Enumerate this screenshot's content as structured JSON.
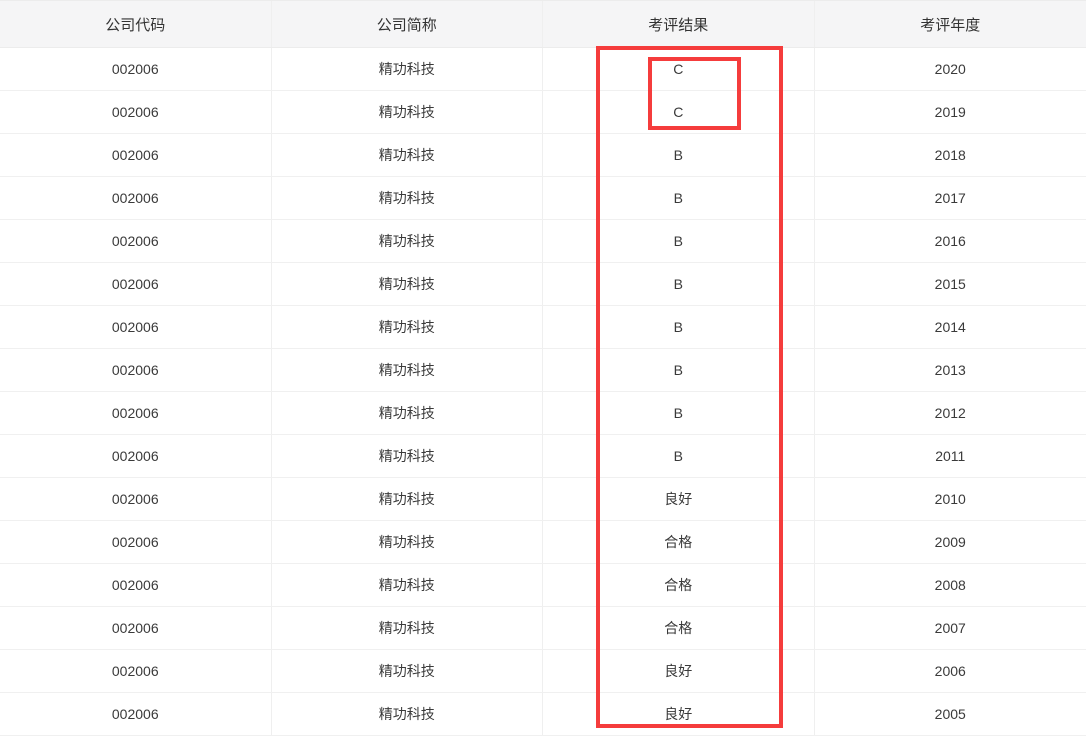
{
  "table": {
    "columns": [
      {
        "key": "code",
        "label": "公司代码"
      },
      {
        "key": "name",
        "label": "公司简称"
      },
      {
        "key": "result",
        "label": "考评结果"
      },
      {
        "key": "year",
        "label": "考评年度"
      }
    ],
    "rows": [
      [
        "002006",
        "精功科技",
        "C",
        "2020"
      ],
      [
        "002006",
        "精功科技",
        "C",
        "2019"
      ],
      [
        "002006",
        "精功科技",
        "B",
        "2018"
      ],
      [
        "002006",
        "精功科技",
        "B",
        "2017"
      ],
      [
        "002006",
        "精功科技",
        "B",
        "2016"
      ],
      [
        "002006",
        "精功科技",
        "B",
        "2015"
      ],
      [
        "002006",
        "精功科技",
        "B",
        "2014"
      ],
      [
        "002006",
        "精功科技",
        "B",
        "2013"
      ],
      [
        "002006",
        "精功科技",
        "B",
        "2012"
      ],
      [
        "002006",
        "精功科技",
        "B",
        "2011"
      ],
      [
        "002006",
        "精功科技",
        "良好",
        "2010"
      ],
      [
        "002006",
        "精功科技",
        "合格",
        "2009"
      ],
      [
        "002006",
        "精功科技",
        "合格",
        "2008"
      ],
      [
        "002006",
        "精功科技",
        "合格",
        "2007"
      ],
      [
        "002006",
        "精功科技",
        "良好",
        "2006"
      ],
      [
        "002006",
        "精功科技",
        "良好",
        "2005"
      ]
    ]
  },
  "annotations": {
    "highlight_color": "#f53c3c",
    "outer_box_target": "考评结果-column",
    "inner_box_target": "C-values-2020-2019"
  },
  "colors": {
    "header_background": "#f5f5f6",
    "row_border": "#f0f0f0",
    "text": "#333333"
  }
}
